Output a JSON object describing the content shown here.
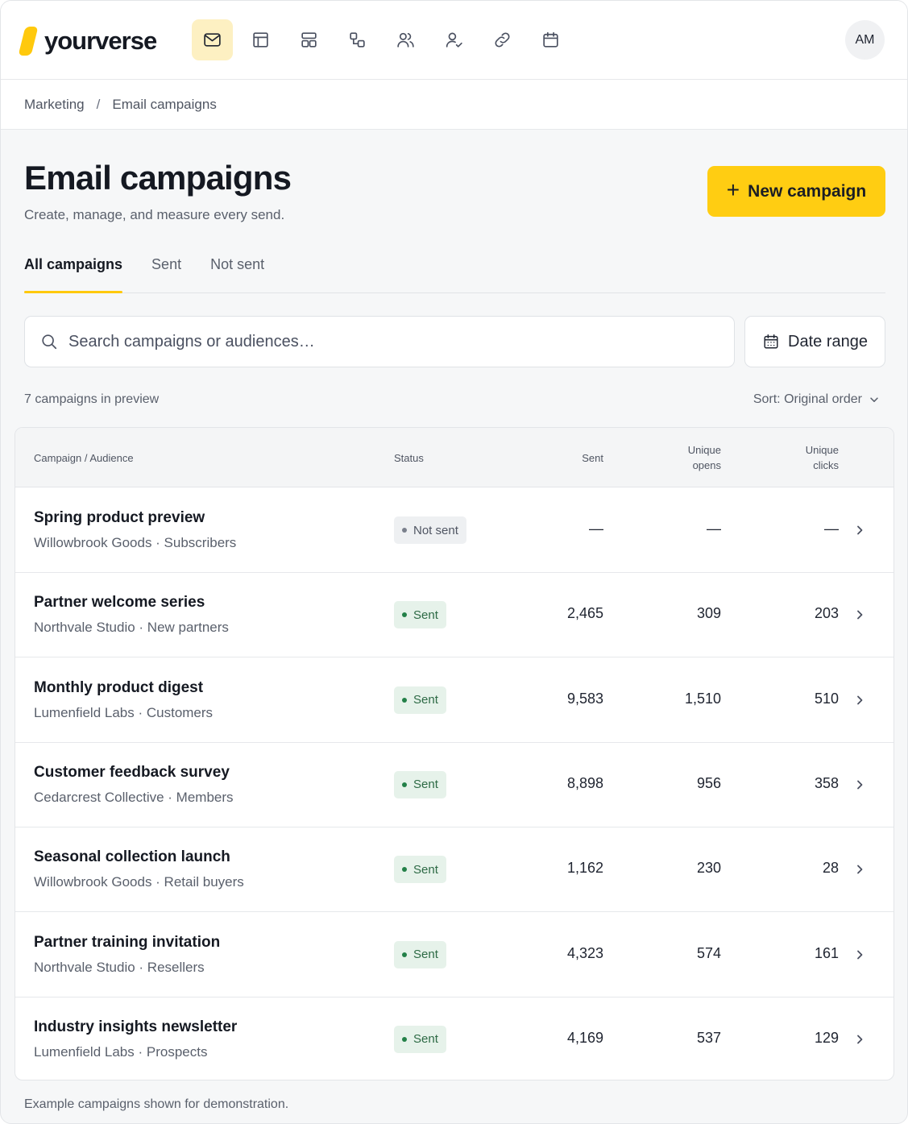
{
  "brand": {
    "name": "yourverse",
    "accent": "#ffc90d"
  },
  "nav": [
    {
      "icon": "mail-icon",
      "active": true
    },
    {
      "icon": "layout-icon",
      "active": false
    },
    {
      "icon": "template-icon",
      "active": false
    },
    {
      "icon": "workflow-icon",
      "active": false
    },
    {
      "icon": "users-icon",
      "active": false
    },
    {
      "icon": "user-check-icon",
      "active": false
    },
    {
      "icon": "link-icon",
      "active": false
    },
    {
      "icon": "calendar-icon",
      "active": false
    }
  ],
  "user": {
    "initials": "AM"
  },
  "breadcrumb": {
    "parent": "Marketing",
    "separator": "/",
    "current": "Email campaigns"
  },
  "header": {
    "title": "Email campaigns",
    "subtitle": "Create, manage, and measure every send.",
    "new_button": "New campaign"
  },
  "tabs": [
    {
      "label": "All campaigns",
      "active": true
    },
    {
      "label": "Sent",
      "active": false
    },
    {
      "label": "Not sent",
      "active": false
    }
  ],
  "search": {
    "placeholder": "Search campaigns or audiences…"
  },
  "date_range": {
    "label": "Date range"
  },
  "summary": {
    "count_text": "7 campaigns in preview",
    "sort_label": "Sort: Original order"
  },
  "table": {
    "columns": {
      "campaign": "Campaign / Audience",
      "status": "Status",
      "sent": "Sent",
      "opens_line1": "Unique",
      "opens_line2": "opens",
      "clicks_line1": "Unique",
      "clicks_line2": "clicks"
    },
    "rows": [
      {
        "name": "Spring product preview",
        "audience": "Willowbrook Goods · Subscribers",
        "status": "Not sent",
        "status_kind": "notsent",
        "sent": "—",
        "opens": "—",
        "clicks": "—"
      },
      {
        "name": "Partner welcome series",
        "audience": "Northvale Studio · New partners",
        "status": "Sent",
        "status_kind": "sent",
        "sent": "2,465",
        "opens": "309",
        "clicks": "203"
      },
      {
        "name": "Monthly product digest",
        "audience": "Lumenfield Labs · Customers",
        "status": "Sent",
        "status_kind": "sent",
        "sent": "9,583",
        "opens": "1,510",
        "clicks": "510"
      },
      {
        "name": "Customer feedback survey",
        "audience": "Cedarcrest Collective · Members",
        "status": "Sent",
        "status_kind": "sent",
        "sent": "8,898",
        "opens": "956",
        "clicks": "358"
      },
      {
        "name": "Seasonal collection launch",
        "audience": "Willowbrook Goods · Retail buyers",
        "status": "Sent",
        "status_kind": "sent",
        "sent": "1,162",
        "opens": "230",
        "clicks": "28"
      },
      {
        "name": "Partner training invitation",
        "audience": "Northvale Studio · Resellers",
        "status": "Sent",
        "status_kind": "sent",
        "sent": "4,323",
        "opens": "574",
        "clicks": "161"
      },
      {
        "name": "Industry insights newsletter",
        "audience": "Lumenfield Labs · Prospects",
        "status": "Sent",
        "status_kind": "sent",
        "sent": "4,169",
        "opens": "537",
        "clicks": "129"
      }
    ]
  },
  "footnote": "Example campaigns shown for demonstration."
}
